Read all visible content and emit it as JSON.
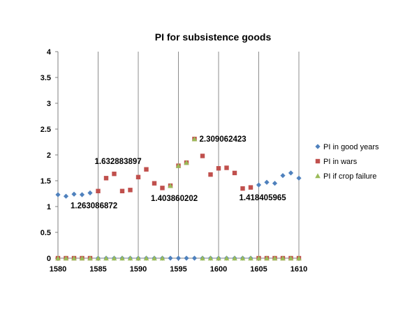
{
  "chart_data": {
    "type": "scatter",
    "title": "PI for subsistence goods",
    "xlabel": "",
    "ylabel": "",
    "xlim": [
      1580,
      1610
    ],
    "ylim": [
      0,
      4
    ],
    "x_ticks": [
      1580,
      1585,
      1590,
      1595,
      1600,
      1605,
      1610
    ],
    "y_ticks": [
      0,
      0.5,
      1,
      1.5,
      2,
      2.5,
      3,
      3.5,
      4
    ],
    "x_tick_labels": [
      "1580",
      "1585",
      "1590",
      "1595",
      "1600",
      "1605",
      "1610"
    ],
    "y_tick_labels": [
      "0",
      "0.5",
      "1",
      "1.5",
      "2",
      "2.5",
      "3",
      "3.5",
      "4"
    ],
    "grid": "vertical",
    "legend_position": "right",
    "series": [
      {
        "name": "PI in good years",
        "color": "#4f81bd",
        "marker": "diamond",
        "points": [
          [
            1580,
            1.23
          ],
          [
            1581,
            1.2
          ],
          [
            1582,
            1.24
          ],
          [
            1583,
            1.23
          ],
          [
            1584,
            1.263086872
          ],
          [
            1585,
            0
          ],
          [
            1586,
            0
          ],
          [
            1587,
            0
          ],
          [
            1588,
            0
          ],
          [
            1589,
            0
          ],
          [
            1590,
            0
          ],
          [
            1591,
            0
          ],
          [
            1592,
            0
          ],
          [
            1593,
            0
          ],
          [
            1594,
            0
          ],
          [
            1595,
            0
          ],
          [
            1596,
            0
          ],
          [
            1597,
            0
          ],
          [
            1598,
            0
          ],
          [
            1599,
            0
          ],
          [
            1600,
            0
          ],
          [
            1601,
            0
          ],
          [
            1602,
            0
          ],
          [
            1603,
            0
          ],
          [
            1604,
            0
          ],
          [
            1605,
            1.418405965
          ],
          [
            1606,
            1.47
          ],
          [
            1607,
            1.45
          ],
          [
            1608,
            1.6
          ],
          [
            1609,
            1.65
          ],
          [
            1610,
            1.55
          ]
        ]
      },
      {
        "name": "PI in wars",
        "color": "#c0504d",
        "marker": "square",
        "points": [
          [
            1580,
            0
          ],
          [
            1581,
            0
          ],
          [
            1582,
            0
          ],
          [
            1583,
            0
          ],
          [
            1584,
            0
          ],
          [
            1585,
            1.3
          ],
          [
            1586,
            1.55
          ],
          [
            1587,
            1.632883897
          ],
          [
            1588,
            1.3
          ],
          [
            1589,
            1.32
          ],
          [
            1590,
            1.57
          ],
          [
            1591,
            1.72
          ],
          [
            1592,
            1.45
          ],
          [
            1593,
            1.36
          ],
          [
            1594,
            1.403860202
          ],
          [
            1595,
            1.79
          ],
          [
            1596,
            1.85
          ],
          [
            1597,
            2.309062423
          ],
          [
            1598,
            1.98
          ],
          [
            1599,
            1.62
          ],
          [
            1600,
            1.74
          ],
          [
            1601,
            1.75
          ],
          [
            1602,
            1.65
          ],
          [
            1603,
            1.35
          ],
          [
            1604,
            1.37
          ],
          [
            1605,
            0
          ],
          [
            1606,
            0
          ],
          [
            1607,
            0
          ],
          [
            1608,
            0
          ],
          [
            1609,
            0
          ],
          [
            1610,
            0
          ]
        ]
      },
      {
        "name": "PI if crop failure",
        "color": "#9bbb59",
        "marker": "triangle",
        "points": [
          [
            1580,
            0
          ],
          [
            1581,
            0
          ],
          [
            1582,
            0
          ],
          [
            1583,
            0
          ],
          [
            1584,
            0
          ],
          [
            1585,
            0
          ],
          [
            1586,
            0
          ],
          [
            1587,
            0
          ],
          [
            1588,
            0
          ],
          [
            1589,
            0
          ],
          [
            1590,
            0
          ],
          [
            1591,
            0
          ],
          [
            1592,
            0
          ],
          [
            1593,
            0
          ],
          [
            1594,
            1.403860202
          ],
          [
            1595,
            1.79
          ],
          [
            1596,
            1.85
          ],
          [
            1597,
            2.309062423
          ],
          [
            1598,
            0
          ],
          [
            1599,
            0
          ],
          [
            1600,
            0
          ],
          [
            1601,
            0
          ],
          [
            1602,
            0
          ],
          [
            1603,
            0
          ],
          [
            1604,
            0
          ],
          [
            1605,
            0
          ],
          [
            1606,
            0
          ],
          [
            1607,
            0
          ],
          [
            1608,
            0
          ],
          [
            1609,
            0
          ],
          [
            1610,
            0
          ]
        ]
      }
    ],
    "data_labels": [
      {
        "x": 1584,
        "y": 1.263086872,
        "text": "1.263086872",
        "anchor": "below-left"
      },
      {
        "x": 1587,
        "y": 1.632883897,
        "text": "1.632883897",
        "anchor": "above-left"
      },
      {
        "x": 1597,
        "y": 2.309062423,
        "text": "2.309062423",
        "anchor": "right"
      },
      {
        "x": 1594,
        "y": 1.403860202,
        "text": "1.403860202",
        "anchor": "below-left"
      },
      {
        "x": 1605,
        "y": 1.418405965,
        "text": "1.418405965",
        "anchor": "below-left"
      }
    ]
  }
}
